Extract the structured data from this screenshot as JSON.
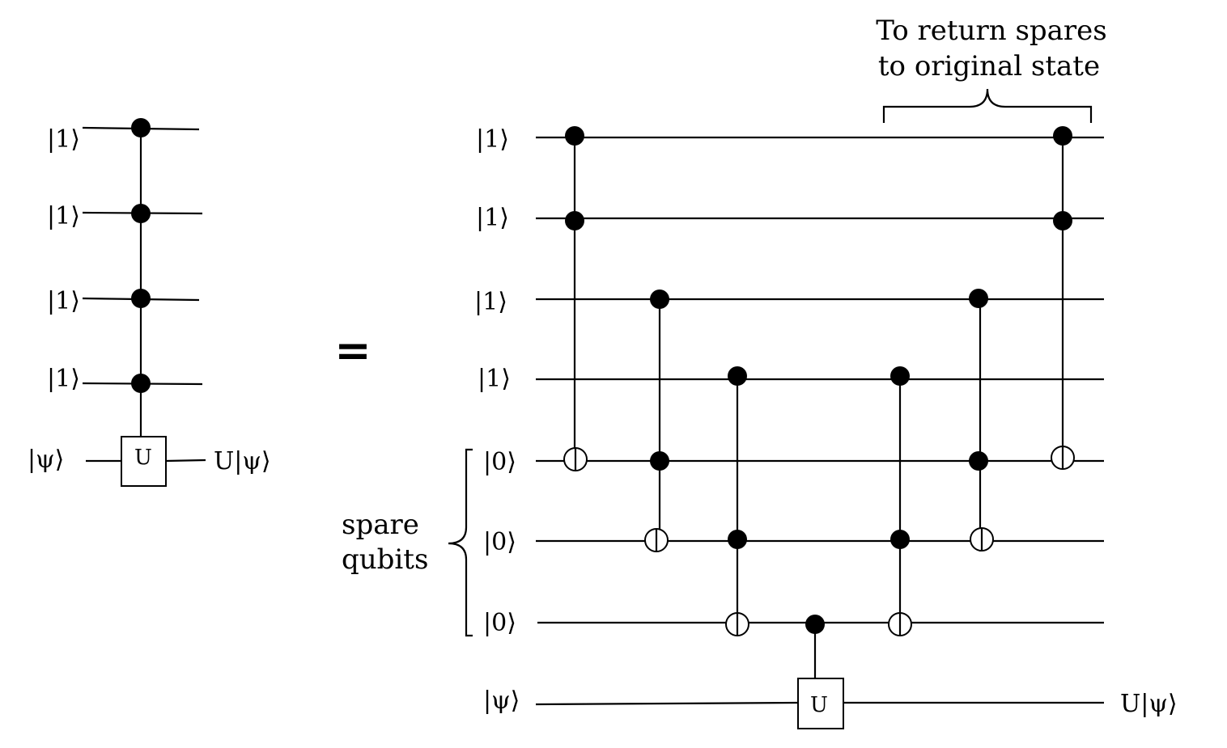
{
  "left_circuit": {
    "controls": [
      "|1⟩",
      "|1⟩",
      "|1⟩",
      "|1⟩"
    ],
    "target_in": "|ψ⟩",
    "gate": "U",
    "output": "U|ψ⟩"
  },
  "equals": "=",
  "right_circuit": {
    "qubits": [
      "|1⟩",
      "|1⟩",
      "|1⟩",
      "|1⟩",
      "|0⟩",
      "|0⟩",
      "|0⟩",
      "|ψ⟩"
    ],
    "spare_label": [
      "spare",
      "qubits"
    ],
    "annotation": [
      "To return spares",
      "to original state"
    ],
    "gate": "U",
    "output": "U|ψ⟩"
  }
}
